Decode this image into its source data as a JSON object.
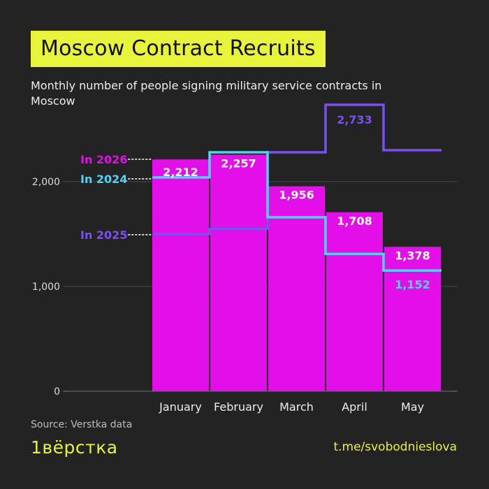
{
  "header": {
    "title": "Moscow Contract Recruits",
    "subtitle": "Monthly number of people signing military service contracts in Moscow"
  },
  "footer": {
    "source": "Source: Verstka data",
    "brand": "1вёрстка",
    "channel": "t.me/svobodnieslova"
  },
  "colors": {
    "background": "#232323",
    "accent": "#e8f43c",
    "bar_2026": "#e20fe8",
    "line_2024": "#4fd3f0",
    "line_2025": "#7b4ff0",
    "grid": "#4a4a4a"
  },
  "chart_data": {
    "type": "bar",
    "categories": [
      "January",
      "February",
      "March",
      "April",
      "May"
    ],
    "ylim": [
      0,
      3000
    ],
    "yticks": [
      0,
      1000,
      2000
    ],
    "ytick_labels": [
      "0",
      "1,000",
      "2,000"
    ],
    "grid": true,
    "series": [
      {
        "name": "In 2026",
        "chart_kind": "bar",
        "values": [
          2212,
          2257,
          1956,
          1708,
          1378
        ],
        "value_labels": [
          "2,212",
          "2,257",
          "1,956",
          "1,708",
          "1,378"
        ]
      },
      {
        "name": "In 2024",
        "chart_kind": "step",
        "values": [
          2040,
          2280,
          1660,
          1310,
          1152
        ],
        "value_labels": [
          "",
          "",
          "",
          "",
          "1,152"
        ]
      },
      {
        "name": "In 2025",
        "chart_kind": "step",
        "values": [
          1500,
          1550,
          2280,
          2733,
          2300
        ],
        "value_labels": [
          "",
          "",
          "",
          "2,733",
          ""
        ]
      }
    ]
  }
}
